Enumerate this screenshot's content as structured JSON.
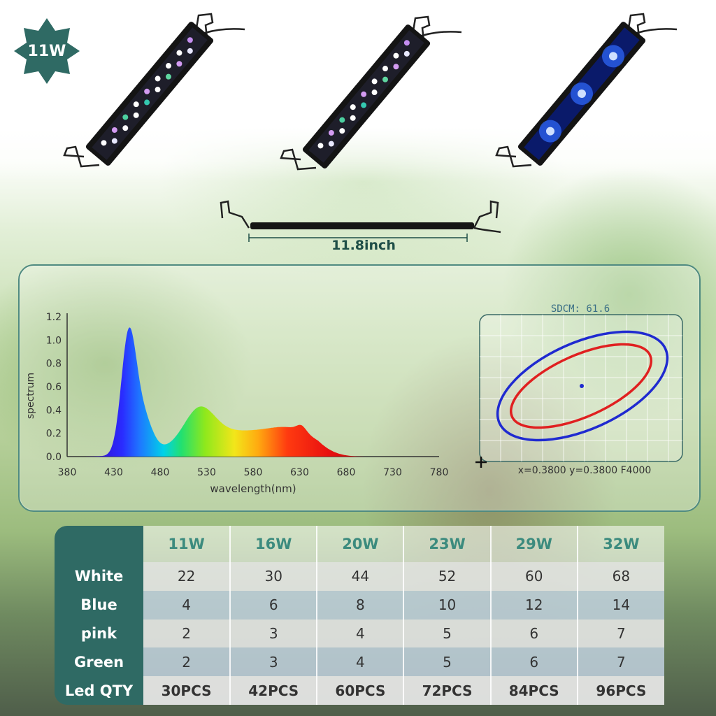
{
  "badge": {
    "label": "11W",
    "color": "#2f6a64"
  },
  "fixture": {
    "length_label": "11.8inch"
  },
  "spectrum": {
    "y_label": "spectrum",
    "x_label": "wavelength(nm)",
    "y_ticks": [
      "1.2",
      "1.0",
      "0.8",
      "0.6",
      "0.4",
      "0.2",
      "0.0"
    ],
    "x_ticks": [
      "380",
      "430",
      "480",
      "530",
      "580",
      "630",
      "680",
      "730",
      "780"
    ]
  },
  "chromaticity": {
    "sdcm_label": "SDCM:  61.6",
    "coords_label": "x=0.3800 y=0.3800 F4000"
  },
  "table": {
    "columns": [
      "11W",
      "16W",
      "20W",
      "23W",
      "29W",
      "32W"
    ],
    "rows": [
      {
        "label": "White",
        "values": [
          "22",
          "30",
          "44",
          "52",
          "60",
          "68"
        ]
      },
      {
        "label": "Blue",
        "values": [
          "4",
          "6",
          "8",
          "10",
          "12",
          "14"
        ]
      },
      {
        "label": "pink",
        "values": [
          "2",
          "3",
          "4",
          "5",
          "6",
          "7"
        ]
      },
      {
        "label": "Green",
        "values": [
          "2",
          "3",
          "4",
          "5",
          "6",
          "7"
        ]
      },
      {
        "label": "Led QTY",
        "values": [
          "30PCS",
          "42PCS",
          "60PCS",
          "72PCS",
          "84PCS",
          "96PCS"
        ]
      }
    ]
  }
}
